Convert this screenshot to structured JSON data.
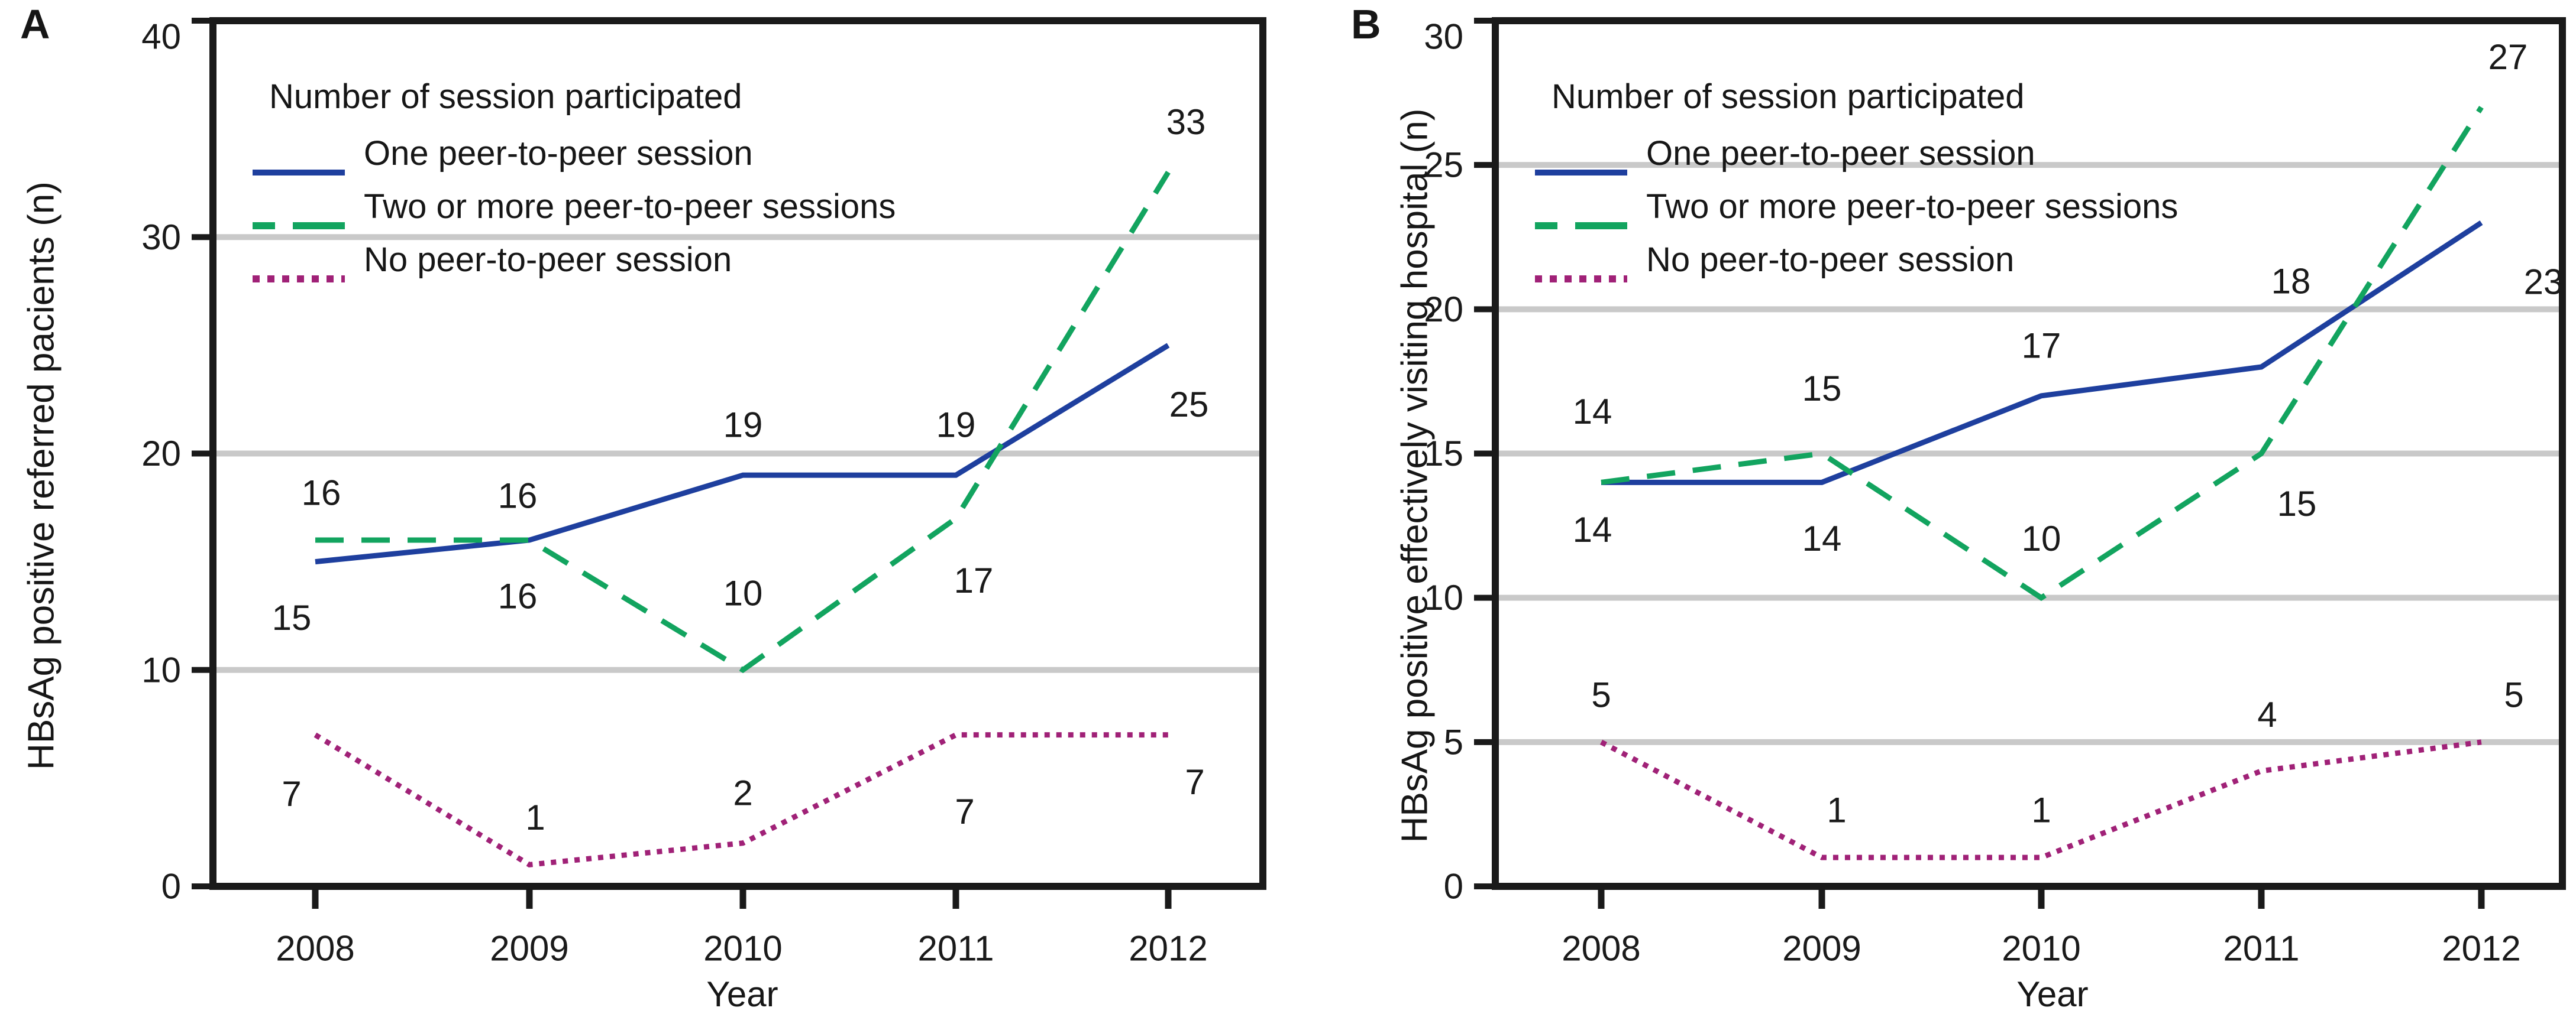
{
  "colors": {
    "blue": "#1e3f9e",
    "green": "#12a45f",
    "purple": "#a02177",
    "grid": "#c9c9c9",
    "frame": "#1a1a1a",
    "text": "#1a1a1a"
  },
  "chart_data": [
    {
      "type": "line",
      "panel_label": "A",
      "title": "",
      "ylabel": "HBsAg positive referred pacients (n)",
      "xlabel": "Year",
      "x": [
        "2008",
        "2009",
        "2010",
        "2011",
        "2012"
      ],
      "ylim": [
        0,
        40
      ],
      "yticks": [
        0,
        10,
        20,
        30,
        40
      ],
      "gridlines": [
        10,
        20,
        30
      ],
      "grid": "horizontal",
      "legend_title": "Number of session participated",
      "legend_position": "top-left",
      "series": [
        {
          "name": "One peer-to-peer session",
          "style": "solid",
          "color_key": "blue",
          "values": [
            15,
            16,
            19,
            19,
            25
          ],
          "label_offsets": [
            [
              -40,
              95
            ],
            [
              -20,
              95
            ],
            [
              0,
              -85
            ],
            [
              0,
              -85
            ],
            [
              35,
              100
            ]
          ]
        },
        {
          "name": "Two or more peer-to-peer sessions",
          "style": "dashed",
          "color_key": "green",
          "values": [
            16,
            16,
            10,
            17,
            33
          ],
          "label_offsets": [
            [
              10,
              -80
            ],
            [
              -20,
              -75
            ],
            [
              0,
              -130
            ],
            [
              30,
              105
            ],
            [
              30,
              -85
            ]
          ]
        },
        {
          "name": "No peer-to-peer session",
          "style": "dotted",
          "color_key": "purple",
          "values": [
            7,
            1,
            2,
            7,
            7
          ],
          "label_offsets": [
            [
              -40,
              100
            ],
            [
              10,
              -80
            ],
            [
              0,
              -85
            ],
            [
              15,
              130
            ],
            [
              45,
              80
            ]
          ]
        }
      ]
    },
    {
      "type": "line",
      "panel_label": "B",
      "title": "",
      "ylabel": "HBsAg positive effectively visiting hospital (n)",
      "xlabel": "Year",
      "x": [
        "2008",
        "2009",
        "2010",
        "2011",
        "2012"
      ],
      "ylim": [
        0,
        30
      ],
      "yticks": [
        0,
        5,
        10,
        15,
        20,
        25,
        30
      ],
      "gridlines": [
        5,
        10,
        15,
        20,
        25
      ],
      "grid": "horizontal",
      "legend_title": "Number of session participated",
      "legend_position": "top-left",
      "series": [
        {
          "name": "One peer-to-peer session",
          "style": "solid",
          "color_key": "blue",
          "values": [
            14,
            14,
            17,
            18,
            23
          ],
          "label_offsets": [
            [
              -15,
              80
            ],
            [
              0,
              95
            ],
            [
              0,
              -85
            ],
            [
              50,
              -145
            ],
            [
              105,
              100
            ]
          ]
        },
        {
          "name": "Two or more peer-to-peer sessions",
          "style": "dashed",
          "color_key": "green",
          "values": [
            14,
            15,
            10,
            15,
            27
          ],
          "label_offsets": [
            [
              -15,
              -120
            ],
            [
              0,
              -110
            ],
            [
              0,
              -100
            ],
            [
              60,
              85
            ],
            [
              45,
              -85
            ]
          ]
        },
        {
          "name": "No peer-to-peer session",
          "style": "dotted",
          "color_key": "purple",
          "values": [
            5,
            1,
            1,
            4,
            5
          ],
          "label_offsets": [
            [
              0,
              -80
            ],
            [
              25,
              -80
            ],
            [
              0,
              -80
            ],
            [
              10,
              -95
            ],
            [
              55,
              -80
            ]
          ]
        }
      ]
    }
  ]
}
